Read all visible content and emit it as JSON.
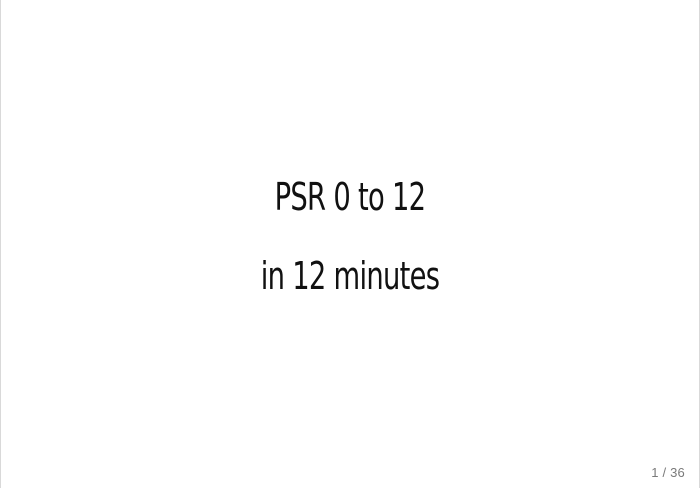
{
  "slide": {
    "title_line_1": "PSR 0 to 12",
    "title_line_2": "in 12 minutes",
    "page_indicator": "1 / 36"
  }
}
